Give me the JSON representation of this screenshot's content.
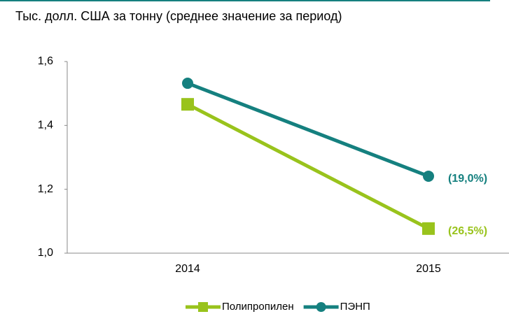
{
  "chart_data": {
    "type": "line",
    "title": "Тыс. долл. США за тонну (среднее значение за период)",
    "categories": [
      "2014",
      "2015"
    ],
    "series": [
      {
        "name": "Полипропилен",
        "color": "#99c31c",
        "marker": "square",
        "values": [
          1.466,
          1.077
        ],
        "annotation": "(26,5%)"
      },
      {
        "name": "ПЭНП",
        "color": "#15807f",
        "marker": "circle",
        "values": [
          1.532,
          1.241
        ],
        "annotation": "(19,0%)"
      }
    ],
    "ylim": [
      1.0,
      1.6
    ],
    "yticks": [
      {
        "value": 1.0,
        "label": "1,0"
      },
      {
        "value": 1.2,
        "label": "1,2"
      },
      {
        "value": 1.4,
        "label": "1,4"
      },
      {
        "value": 1.6,
        "label": "1,6"
      }
    ],
    "grid": false,
    "legend": "bottom"
  }
}
